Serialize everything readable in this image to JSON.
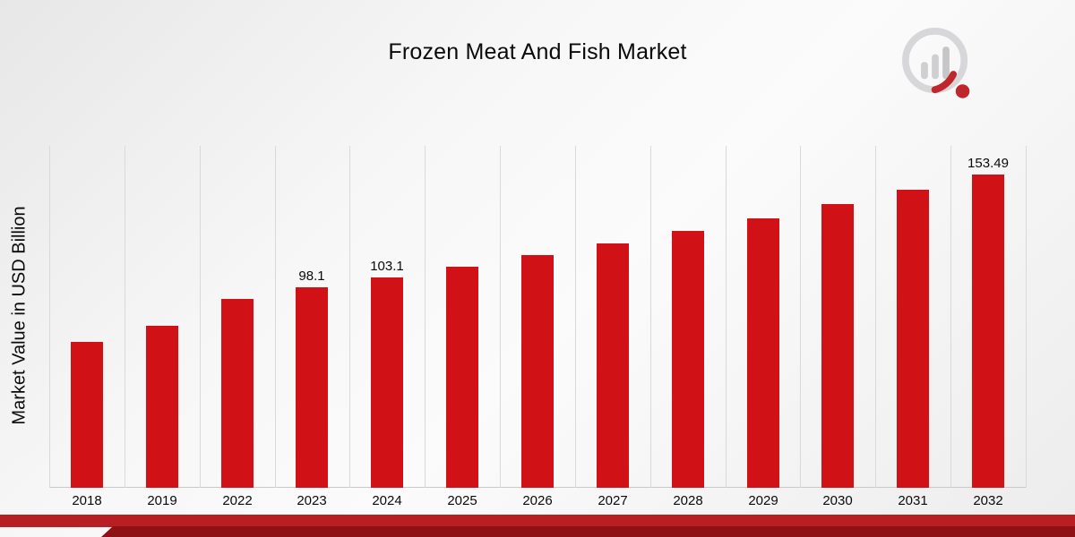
{
  "title": "Frozen Meat And Fish Market",
  "y_axis_label": "Market Value in USD Billion",
  "chart_data": {
    "type": "bar",
    "title": "Frozen Meat And Fish Market",
    "xlabel": "",
    "ylabel": "Market Value in USD Billion",
    "categories": [
      "2018",
      "2019",
      "2022",
      "2023",
      "2024",
      "2025",
      "2026",
      "2027",
      "2028",
      "2029",
      "2030",
      "2031",
      "2032"
    ],
    "values": [
      71.5,
      79.5,
      92.5,
      98.1,
      103.1,
      108.4,
      113.9,
      119.7,
      125.8,
      132.2,
      139.0,
      146.1,
      153.49
    ],
    "data_labels": {
      "2023": "98.1",
      "2024": "103.1",
      "2032": "153.49"
    },
    "ylim": [
      0,
      170
    ],
    "grid": "vertical-only",
    "legend": "none"
  },
  "colors": {
    "bar": "#d01216",
    "gridline": "#d9d9d9",
    "axis": "#c9c9c9",
    "footer_stripe_light": "#b71f23",
    "footer_stripe_dark": "#8e1215",
    "logo_gray": "#d7d7d9",
    "logo_red": "#c0272d"
  }
}
